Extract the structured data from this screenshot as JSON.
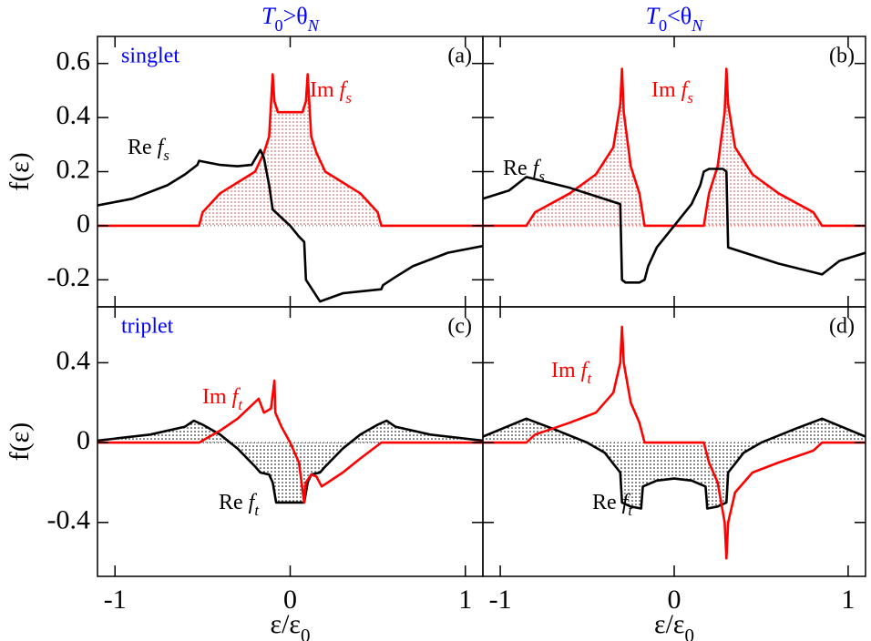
{
  "chart_data": [
    {
      "type": "line",
      "title": "T0>θN",
      "panel_label": "(a)",
      "annotation": "singlet",
      "ylabel": "f(ε)",
      "xlim": [
        -1.1,
        1.1
      ],
      "ylim": [
        -0.3,
        0.7
      ],
      "xticks": [
        -1,
        0,
        1
      ],
      "yticks": [
        -0.2,
        0,
        0.2,
        0.4,
        0.6
      ],
      "series": [
        {
          "name": "Re fs",
          "color": "#000000",
          "fill": false,
          "x": [
            -1.1,
            -0.9,
            -0.7,
            -0.6,
            -0.53,
            -0.52,
            -0.4,
            -0.3,
            -0.22,
            -0.17,
            -0.15,
            -0.12,
            -0.1,
            -0.05,
            0,
            0.05,
            0.08,
            0.09,
            0.12,
            0.17,
            0.3,
            0.52,
            0.53,
            0.6,
            0.7,
            0.9,
            1.1
          ],
          "values": [
            0.075,
            0.1,
            0.15,
            0.19,
            0.225,
            0.24,
            0.225,
            0.22,
            0.225,
            0.28,
            0.25,
            0.15,
            0.06,
            0.03,
            0,
            -0.04,
            -0.06,
            -0.2,
            -0.23,
            -0.28,
            -0.25,
            -0.235,
            -0.22,
            -0.19,
            -0.15,
            -0.1,
            -0.075
          ]
        },
        {
          "name": "Im fs",
          "color": "#ff0000",
          "fill": true,
          "x": [
            -1.1,
            -0.52,
            -0.5,
            -0.4,
            -0.3,
            -0.2,
            -0.15,
            -0.12,
            -0.1,
            -0.09,
            -0.07,
            0,
            0.07,
            0.09,
            0.1,
            0.12,
            0.15,
            0.2,
            0.3,
            0.4,
            0.5,
            0.52,
            1.1
          ],
          "values": [
            0,
            0,
            0.05,
            0.12,
            0.16,
            0.2,
            0.27,
            0.33,
            0.56,
            0.46,
            0.42,
            0.42,
            0.42,
            0.46,
            0.56,
            0.33,
            0.27,
            0.2,
            0.16,
            0.12,
            0.05,
            0,
            0
          ]
        }
      ]
    },
    {
      "type": "line",
      "title": "T0<θN",
      "panel_label": "(b)",
      "xlim": [
        -1.1,
        1.1
      ],
      "ylim": [
        -0.3,
        0.7
      ],
      "xticks": [
        -1,
        0,
        1
      ],
      "yticks": [
        -0.2,
        0,
        0.2,
        0.4,
        0.6
      ],
      "series": [
        {
          "name": "Re fs",
          "color": "#000000",
          "fill": false,
          "x": [
            -1.1,
            -0.95,
            -0.85,
            -0.6,
            -0.31,
            -0.3,
            -0.28,
            -0.2,
            -0.17,
            -0.15,
            -0.1,
            0,
            0.1,
            0.15,
            0.17,
            0.2,
            0.28,
            0.3,
            0.31,
            0.6,
            0.85,
            0.95,
            1.1
          ],
          "values": [
            0.1,
            0.13,
            0.18,
            0.14,
            0.08,
            -0.2,
            -0.21,
            -0.21,
            -0.2,
            -0.15,
            -0.08,
            0,
            0.08,
            0.15,
            0.2,
            0.21,
            0.21,
            0.2,
            -0.08,
            -0.14,
            -0.18,
            -0.13,
            -0.1
          ]
        },
        {
          "name": "Im fs",
          "color": "#ff0000",
          "fill": true,
          "x": [
            -1.1,
            -0.85,
            -0.8,
            -0.6,
            -0.45,
            -0.35,
            -0.31,
            -0.3,
            -0.29,
            -0.25,
            -0.2,
            -0.17,
            0.17,
            0.2,
            0.25,
            0.29,
            0.3,
            0.31,
            0.35,
            0.45,
            0.6,
            0.8,
            0.85,
            1.1
          ],
          "values": [
            0,
            0,
            0.05,
            0.12,
            0.19,
            0.29,
            0.45,
            0.58,
            0.42,
            0.22,
            0.12,
            0,
            0,
            0.12,
            0.22,
            0.42,
            0.58,
            0.45,
            0.29,
            0.19,
            0.12,
            0.05,
            0,
            0
          ]
        }
      ]
    },
    {
      "type": "line",
      "panel_label": "(c)",
      "annotation": "triplet",
      "ylabel": "f(ε)",
      "xlabel": "ε/ε0",
      "xlim": [
        -1.1,
        1.1
      ],
      "ylim": [
        -0.67,
        0.68
      ],
      "xticks": [
        -1,
        0,
        1
      ],
      "yticks": [
        -0.4,
        0,
        0.4
      ],
      "series": [
        {
          "name": "Im ft",
          "color": "#ff0000",
          "fill": false,
          "x": [
            -1.1,
            -0.52,
            -0.4,
            -0.3,
            -0.18,
            -0.15,
            -0.11,
            -0.09,
            -0.085,
            -0.05,
            0,
            0.05,
            0.08,
            0.09,
            0.12,
            0.15,
            0.18,
            0.3,
            0.4,
            0.52,
            1.1
          ],
          "values": [
            0,
            0,
            0.06,
            0.12,
            0.22,
            0.15,
            0.17,
            0.31,
            0.15,
            0.08,
            0,
            -0.1,
            -0.3,
            -0.2,
            -0.16,
            -0.17,
            -0.22,
            -0.15,
            -0.08,
            0,
            0
          ]
        },
        {
          "name": "Re ft",
          "color": "#000000",
          "fill": true,
          "x": [
            -1.1,
            -0.8,
            -0.6,
            -0.55,
            -0.5,
            -0.4,
            -0.3,
            -0.2,
            -0.17,
            -0.12,
            -0.1,
            -0.08,
            0,
            0.08,
            0.1,
            0.12,
            0.17,
            0.2,
            0.3,
            0.4,
            0.5,
            0.55,
            0.6,
            0.8,
            1.1
          ],
          "values": [
            0.01,
            0.04,
            0.08,
            0.11,
            0.09,
            0.04,
            -0.03,
            -0.12,
            -0.15,
            -0.16,
            -0.2,
            -0.3,
            -0.3,
            -0.3,
            -0.2,
            -0.16,
            -0.15,
            -0.12,
            -0.03,
            0.04,
            0.09,
            0.11,
            0.08,
            0.04,
            0.01
          ]
        }
      ]
    },
    {
      "type": "line",
      "panel_label": "(d)",
      "xlabel": "ε/ε0",
      "xlim": [
        -1.1,
        1.1
      ],
      "ylim": [
        -0.67,
        0.68
      ],
      "xticks": [
        -1,
        0,
        1
      ],
      "yticks": [
        -0.4,
        0,
        0.4
      ],
      "series": [
        {
          "name": "Im ft",
          "color": "#ff0000",
          "fill": false,
          "x": [
            -1.1,
            -0.85,
            -0.8,
            -0.6,
            -0.45,
            -0.35,
            -0.31,
            -0.3,
            -0.29,
            -0.25,
            -0.2,
            -0.17,
            0.17,
            0.2,
            0.25,
            0.29,
            0.3,
            0.31,
            0.35,
            0.45,
            0.6,
            0.8,
            0.85,
            1.1
          ],
          "values": [
            0,
            0,
            0.04,
            0.1,
            0.15,
            0.25,
            0.4,
            0.58,
            0.4,
            0.2,
            0.1,
            0,
            0,
            -0.1,
            -0.2,
            -0.4,
            -0.58,
            -0.4,
            -0.25,
            -0.15,
            -0.1,
            -0.04,
            0,
            0
          ]
        },
        {
          "name": "Re ft",
          "color": "#000000",
          "fill": true,
          "x": [
            -1.1,
            -0.85,
            -0.7,
            -0.5,
            -0.4,
            -0.31,
            -0.3,
            -0.25,
            -0.19,
            -0.18,
            -0.1,
            0,
            0.1,
            0.18,
            0.19,
            0.25,
            0.3,
            0.31,
            0.4,
            0.5,
            0.7,
            0.85,
            1.1
          ],
          "values": [
            0.03,
            0.12,
            0.07,
            0,
            -0.05,
            -0.15,
            -0.3,
            -0.32,
            -0.33,
            -0.22,
            -0.19,
            -0.18,
            -0.19,
            -0.22,
            -0.33,
            -0.32,
            -0.3,
            -0.15,
            -0.05,
            0,
            0.07,
            0.12,
            0.03
          ]
        }
      ]
    }
  ]
}
